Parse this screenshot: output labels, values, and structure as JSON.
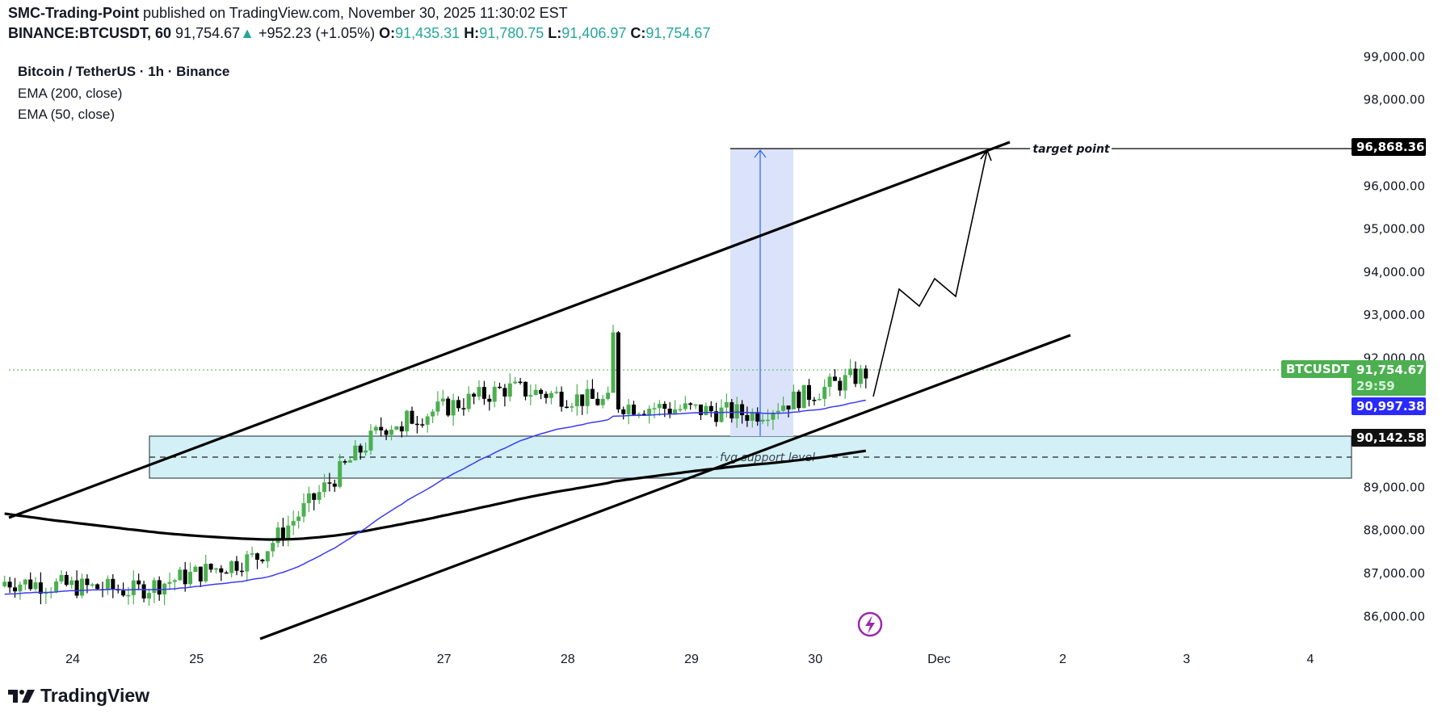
{
  "header": {
    "author": "SMC-Trading-Point",
    "published_text": "published on TradingView.com, November 30, 2025 11:30:02 EST",
    "symbol": "BINANCE:BTCUSDT, 60",
    "last": "91,754.67",
    "change": "+952.23 (+1.05%)",
    "o_label": "O:",
    "o": "91,435.31",
    "h_label": "H:",
    "h": "91,780.75",
    "l_label": "L:",
    "l": "91,406.97",
    "c_label": "C:",
    "c": "91,754.67"
  },
  "legend": {
    "title": "Bitcoin / TetherUS · 1h · Binance",
    "ema200": "EMA (200, close)",
    "ema50": "EMA (50, close)"
  },
  "tags": {
    "symbol": "BTCUSDT",
    "last_price": "91,754.67",
    "countdown": "29:59",
    "ema50_value": "90,997.38",
    "fvg_top": "90,142.58",
    "target": "96,868.36"
  },
  "annotations": {
    "target_label": "target point",
    "fvg_label": "fvg support level"
  },
  "branding": {
    "logo_text": "TradingView"
  },
  "colors": {
    "up": "#4caf50",
    "down": "#000000",
    "ema50": "#3b3bf0",
    "ema200": "#000000",
    "fvg_fill": "#d2f0f5",
    "projection_box": "#dbe3fb",
    "header_up": "#26a69a"
  },
  "chart_data": {
    "type": "candlestick",
    "title": "Bitcoin / TetherUS · 1h · Binance",
    "xlabel": "",
    "ylabel": "",
    "ylim": [
      85500,
      99000
    ],
    "y_ticks": [
      "99,000.00",
      "98,000.00",
      "96,000.00",
      "95,000.00",
      "94,000.00",
      "93,000.00",
      "92,000.00",
      "89,000.00",
      "88,000.00",
      "87,000.00",
      "86,000.00"
    ],
    "x_ticks": [
      "24",
      "25",
      "26",
      "27",
      "28",
      "29",
      "30",
      "Dec",
      "2",
      "3",
      "4"
    ],
    "last_price": 91754.67,
    "ema50_last": 90997.38,
    "ema200_last": 90100,
    "fvg_zone": {
      "top": 90142.58,
      "bottom": 89150,
      "mid": 89650
    },
    "target": 96868.36,
    "channel_upper": [
      {
        "x": "Nov 23 12:00",
        "y": 88400
      },
      {
        "x": "Dec 1 13:00",
        "y": 97020
      }
    ],
    "channel_lower": [
      {
        "x": "Nov 25 12:00",
        "y": 85450
      },
      {
        "x": "Dec 2 03:00",
        "y": 92550
      }
    ],
    "projection_path": [
      91300,
      93800,
      93400,
      94000,
      93600,
      96868.36
    ],
    "daily_ohlc_approx": [
      {
        "day": "Nov 24",
        "open": 86800,
        "high": 88200,
        "low": 85700,
        "close": 86600
      },
      {
        "day": "Nov 25",
        "open": 86600,
        "high": 89200,
        "low": 86100,
        "close": 87400
      },
      {
        "day": "Nov 26",
        "open": 87400,
        "high": 90700,
        "low": 86300,
        "close": 90400
      },
      {
        "day": "Nov 27",
        "open": 90400,
        "high": 91900,
        "low": 89800,
        "close": 91300
      },
      {
        "day": "Nov 28",
        "open": 91300,
        "high": 93100,
        "low": 90100,
        "close": 90900
      },
      {
        "day": "Nov 29",
        "open": 90900,
        "high": 91300,
        "low": 90200,
        "close": 90700
      },
      {
        "day": "Nov 30",
        "open": 90700,
        "high": 91900,
        "low": 90400,
        "close": 91754.67
      }
    ]
  }
}
